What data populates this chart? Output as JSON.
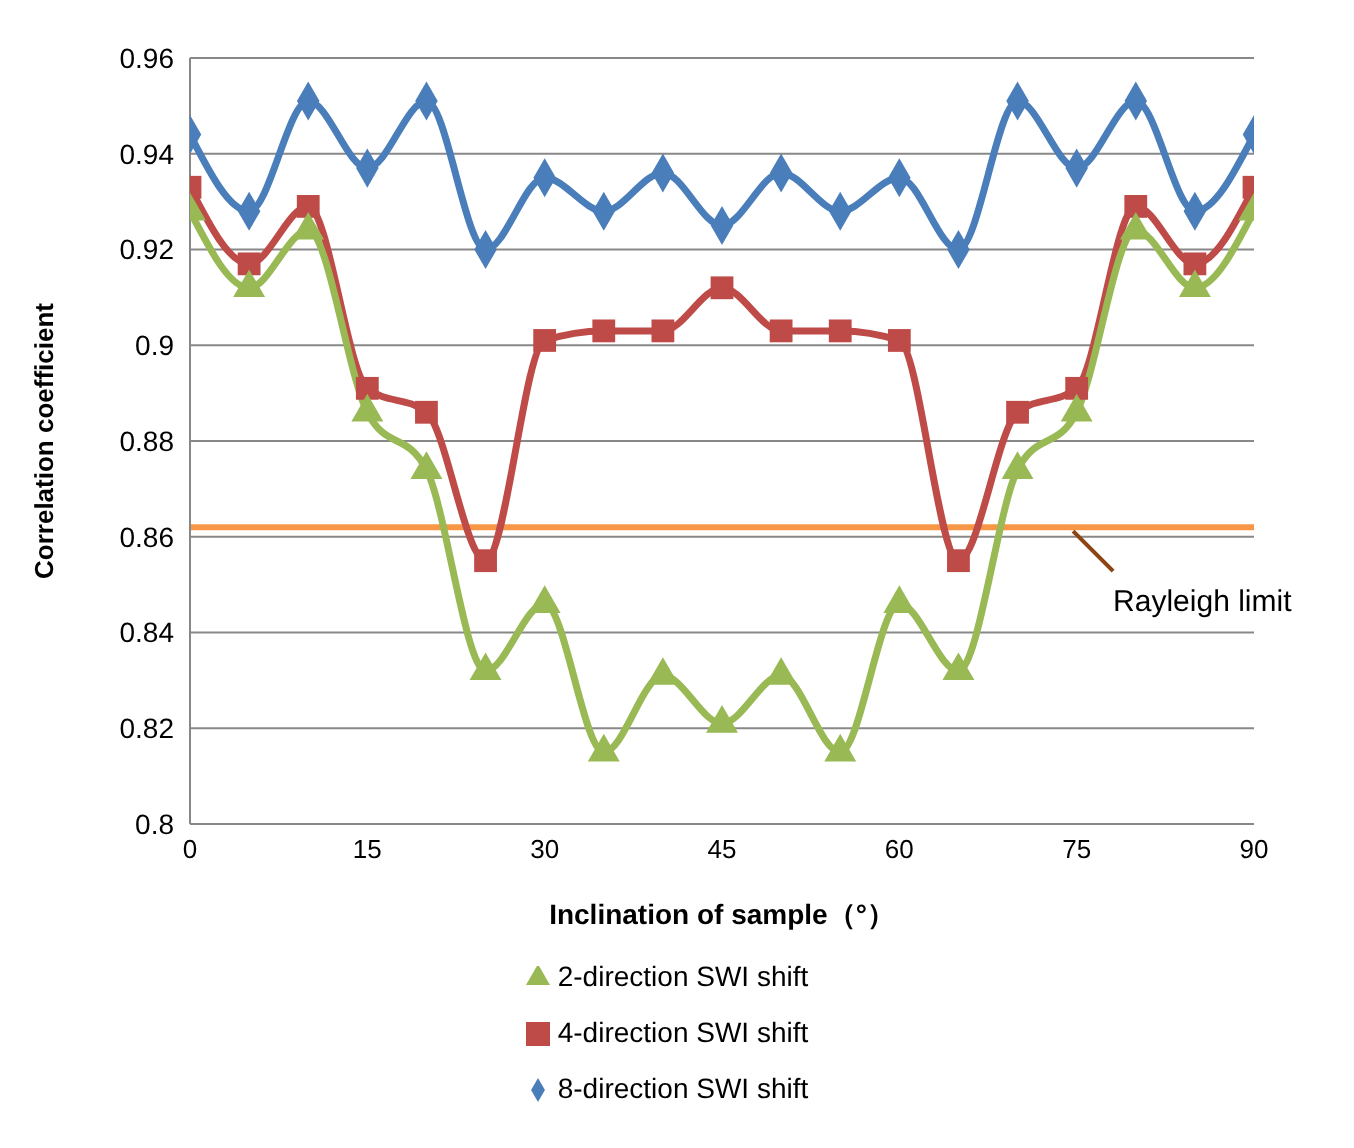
{
  "chart_data": {
    "type": "line",
    "xlabel": "Inclination of sample（°）",
    "ylabel": "Correlation coefficient",
    "x": [
      0,
      5,
      10,
      15,
      20,
      25,
      30,
      35,
      40,
      45,
      50,
      55,
      60,
      65,
      70,
      75,
      80,
      85,
      90
    ],
    "series": [
      {
        "name": "8-direction SWI shift",
        "color": "#4a7ebb",
        "marker": "diamond",
        "values": [
          0.944,
          0.928,
          0.951,
          0.937,
          0.951,
          0.92,
          0.935,
          0.928,
          0.936,
          0.925,
          0.936,
          0.928,
          0.935,
          0.92,
          0.951,
          0.937,
          0.951,
          0.928,
          0.944
        ]
      },
      {
        "name": "4-direction SWI shift",
        "color": "#be4b48",
        "marker": "square",
        "values": [
          0.933,
          0.917,
          0.929,
          0.891,
          0.886,
          0.855,
          0.901,
          0.903,
          0.903,
          0.912,
          0.903,
          0.903,
          0.901,
          0.855,
          0.886,
          0.891,
          0.929,
          0.917,
          0.933
        ]
      },
      {
        "name": "2-direction SWI shift",
        "color": "#98b954",
        "marker": "triangle",
        "values": [
          0.928,
          0.912,
          0.924,
          0.886,
          0.874,
          0.832,
          0.846,
          0.815,
          0.831,
          0.821,
          0.831,
          0.815,
          0.846,
          0.832,
          0.874,
          0.886,
          0.924,
          0.912,
          0.928
        ]
      }
    ],
    "xlim": [
      0,
      90
    ],
    "xticks": [
      0,
      15,
      30,
      45,
      60,
      75,
      90
    ],
    "ylim": [
      0.8,
      0.96
    ],
    "yticks": [
      0.8,
      0.82,
      0.84,
      0.86,
      0.88,
      0.9,
      0.92,
      0.94,
      0.96
    ],
    "ref_lines": [
      {
        "axis": "y",
        "value": 0.862,
        "label": "Rayleigh limit",
        "color": "#f79646",
        "line_style": "solid"
      }
    ],
    "grid": "y",
    "legend": "bottom",
    "line_style": "solid"
  }
}
